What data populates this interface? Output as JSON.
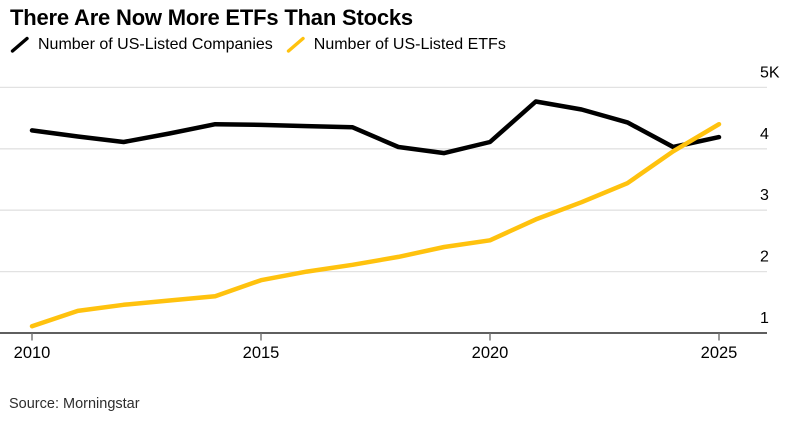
{
  "title": "There Are Now More ETFs Than Stocks",
  "legend": [
    {
      "label": "Number of US-Listed Companies",
      "color": "#000000"
    },
    {
      "label": "Number of US-Listed ETFs",
      "color": "#FFC20E"
    }
  ],
  "source": "Source: Morningstar",
  "colors": {
    "companies_line": "#000000",
    "etf_line": "#FFC20E",
    "gridline": "#e2e2e2",
    "axis_baseline": "#2a2a2a",
    "tick_mark": "#6e6e6e",
    "label_text": "#000000"
  },
  "chart_data": {
    "type": "line",
    "title": "There Are Now More ETFs Than Stocks",
    "x": [
      2010,
      2011,
      2012,
      2013,
      2014,
      2015,
      2016,
      2017,
      2018,
      2019,
      2020,
      2021,
      2022,
      2023,
      2024,
      2025
    ],
    "series": [
      {
        "name": "Number of US-Listed Companies",
        "color": "#000000",
        "values": [
          4300,
          4200,
          4110,
          4250,
          4400,
          4390,
          4370,
          4350,
          4030,
          3930,
          4110,
          4770,
          4640,
          4430,
          4030,
          4190
        ]
      },
      {
        "name": "Number of US-Listed ETFs",
        "color": "#FFC20E",
        "values": [
          1110,
          1360,
          1460,
          1530,
          1600,
          1860,
          2000,
          2110,
          2240,
          2400,
          2510,
          2850,
          3130,
          3440,
          3960,
          4400
        ]
      }
    ],
    "xlabel": "",
    "ylabel": "",
    "xlim": [
      2010,
      2025
    ],
    "ylim": [
      1000,
      5350
    ],
    "x_ticks": [
      2010,
      2015,
      2020,
      2025
    ],
    "x_tick_labels": [
      "2010",
      "2015",
      "2020",
      "2025"
    ],
    "y_ticks": [
      1000,
      2000,
      3000,
      4000,
      5000
    ],
    "y_tick_labels": [
      "1",
      "2",
      "3",
      "4",
      "5K"
    ],
    "grid": "horizontal",
    "legend_position": "top-left",
    "source": "Source: Morningstar"
  }
}
